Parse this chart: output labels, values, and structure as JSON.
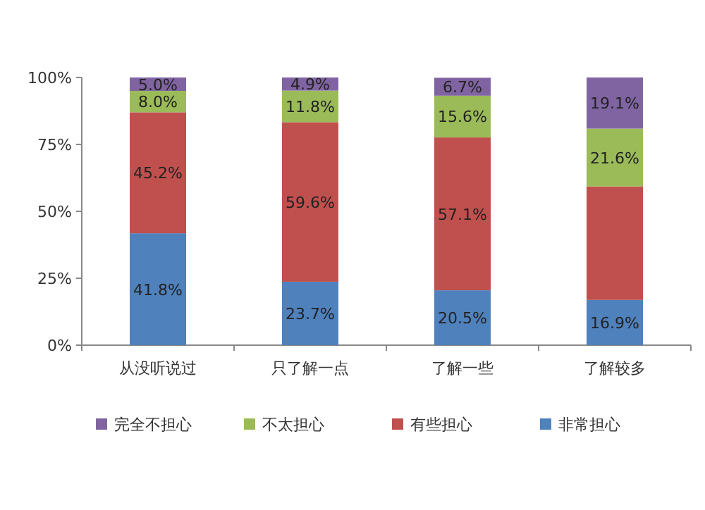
{
  "chart_data": {
    "type": "bar",
    "stacked": true,
    "categories": [
      "从没听说过",
      "只了解一点",
      "了解一些",
      "了解较多"
    ],
    "series": [
      {
        "name": "非常担心",
        "color": "#4f81bd",
        "values": [
          41.8,
          23.7,
          20.5,
          16.9
        ],
        "value_labels": [
          "41.8%",
          "23.7%",
          "20.5%",
          "16.9%"
        ]
      },
      {
        "name": "有些担心",
        "color": "#c0504d",
        "values": [
          45.2,
          59.6,
          57.1,
          42.4
        ],
        "value_labels": [
          "45.2%",
          "59.6%",
          "57.1%",
          null
        ]
      },
      {
        "name": "不太担心",
        "color": "#9bbb59",
        "values": [
          8.0,
          11.8,
          15.6,
          21.6
        ],
        "value_labels": [
          "8.0%",
          "11.8%",
          "15.6%",
          "21.6%"
        ]
      },
      {
        "name": "完全不担心",
        "color": "#8064a2",
        "values": [
          5.0,
          4.9,
          6.7,
          19.1
        ],
        "value_labels": [
          "5.0%",
          "4.9%",
          "6.7%",
          "19.1%"
        ]
      }
    ],
    "ylim": [
      0,
      100
    ],
    "yticks": [
      {
        "value": 0,
        "label": "0%"
      },
      {
        "value": 25,
        "label": "25%"
      },
      {
        "value": 50,
        "label": "50%"
      },
      {
        "value": 75,
        "label": "75%"
      },
      {
        "value": 100,
        "label": "100%"
      }
    ],
    "legend": "bottom"
  }
}
